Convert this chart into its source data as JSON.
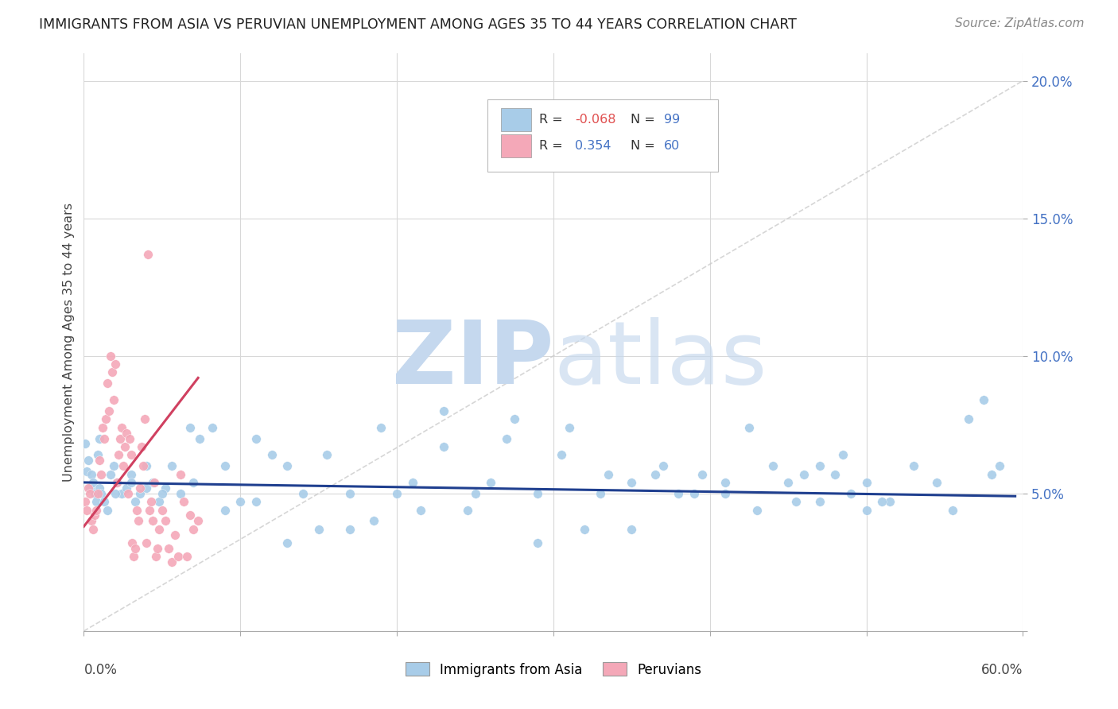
{
  "title": "IMMIGRANTS FROM ASIA VS PERUVIAN UNEMPLOYMENT AMONG AGES 35 TO 44 YEARS CORRELATION CHART",
  "source": "Source: ZipAtlas.com",
  "ylabel": "Unemployment Among Ages 35 to 44 years",
  "xlim": [
    0.0,
    0.6
  ],
  "ylim": [
    0.0,
    0.21
  ],
  "legend_r_blue": "-0.068",
  "legend_n_blue": "99",
  "legend_r_pink": "0.354",
  "legend_n_pink": "60",
  "blue_color": "#a8cce8",
  "pink_color": "#f4a8b8",
  "blue_line_color": "#1f3f8f",
  "pink_line_color": "#d04060",
  "diag_color": "#cccccc",
  "grid_color": "#d8d8d8",
  "background_color": "#ffffff",
  "ytick_color": "#4472c4",
  "text_color": "#444444",
  "source_color": "#888888",
  "legend_blue_x": [
    0.001,
    0.002,
    0.003,
    0.004,
    0.005,
    0.006,
    0.007,
    0.008,
    0.009,
    0.01,
    0.011,
    0.013,
    0.015,
    0.017,
    0.019,
    0.021,
    0.024,
    0.027,
    0.03,
    0.033,
    0.036,
    0.04,
    0.044,
    0.048,
    0.052,
    0.056,
    0.062,
    0.068,
    0.074,
    0.082,
    0.09,
    0.1,
    0.11,
    0.12,
    0.13,
    0.14,
    0.155,
    0.17,
    0.185,
    0.2,
    0.215,
    0.23,
    0.245,
    0.26,
    0.275,
    0.29,
    0.305,
    0.32,
    0.335,
    0.35,
    0.365,
    0.38,
    0.395,
    0.41,
    0.425,
    0.44,
    0.455,
    0.47,
    0.485,
    0.5,
    0.515,
    0.53,
    0.545,
    0.555,
    0.565,
    0.575,
    0.58,
    0.585,
    0.01,
    0.02,
    0.03,
    0.04,
    0.05,
    0.07,
    0.09,
    0.11,
    0.13,
    0.15,
    0.17,
    0.19,
    0.21,
    0.23,
    0.25,
    0.27,
    0.29,
    0.31,
    0.33,
    0.35,
    0.37,
    0.39,
    0.41,
    0.43,
    0.45,
    0.46,
    0.47,
    0.48,
    0.49,
    0.5,
    0.51
  ],
  "legend_blue_y": [
    0.068,
    0.058,
    0.062,
    0.052,
    0.057,
    0.054,
    0.05,
    0.047,
    0.064,
    0.052,
    0.05,
    0.047,
    0.044,
    0.057,
    0.06,
    0.054,
    0.05,
    0.052,
    0.057,
    0.047,
    0.05,
    0.052,
    0.054,
    0.047,
    0.052,
    0.06,
    0.05,
    0.074,
    0.07,
    0.074,
    0.06,
    0.047,
    0.07,
    0.064,
    0.032,
    0.05,
    0.064,
    0.05,
    0.04,
    0.05,
    0.044,
    0.08,
    0.044,
    0.054,
    0.077,
    0.05,
    0.064,
    0.037,
    0.057,
    0.037,
    0.057,
    0.05,
    0.057,
    0.05,
    0.074,
    0.06,
    0.047,
    0.06,
    0.064,
    0.054,
    0.047,
    0.06,
    0.054,
    0.044,
    0.077,
    0.084,
    0.057,
    0.06,
    0.07,
    0.05,
    0.054,
    0.06,
    0.05,
    0.054,
    0.044,
    0.047,
    0.06,
    0.037,
    0.037,
    0.074,
    0.054,
    0.067,
    0.05,
    0.07,
    0.032,
    0.074,
    0.05,
    0.054,
    0.06,
    0.05,
    0.054,
    0.044,
    0.054,
    0.057,
    0.047,
    0.057,
    0.05,
    0.044,
    0.047
  ],
  "legend_pink_x": [
    0.001,
    0.002,
    0.003,
    0.004,
    0.005,
    0.006,
    0.007,
    0.008,
    0.009,
    0.01,
    0.011,
    0.012,
    0.013,
    0.014,
    0.015,
    0.016,
    0.017,
    0.018,
    0.019,
    0.02,
    0.021,
    0.022,
    0.023,
    0.024,
    0.025,
    0.026,
    0.027,
    0.028,
    0.029,
    0.03,
    0.031,
    0.032,
    0.033,
    0.034,
    0.035,
    0.036,
    0.037,
    0.038,
    0.039,
    0.04,
    0.041,
    0.042,
    0.043,
    0.044,
    0.045,
    0.046,
    0.047,
    0.048,
    0.05,
    0.052,
    0.054,
    0.056,
    0.058,
    0.06,
    0.062,
    0.064,
    0.066,
    0.068,
    0.07,
    0.073
  ],
  "legend_pink_y": [
    0.047,
    0.044,
    0.052,
    0.05,
    0.04,
    0.037,
    0.042,
    0.044,
    0.05,
    0.062,
    0.057,
    0.074,
    0.07,
    0.077,
    0.09,
    0.08,
    0.1,
    0.094,
    0.084,
    0.097,
    0.054,
    0.064,
    0.07,
    0.074,
    0.06,
    0.067,
    0.072,
    0.05,
    0.07,
    0.064,
    0.032,
    0.027,
    0.03,
    0.044,
    0.04,
    0.052,
    0.067,
    0.06,
    0.077,
    0.032,
    0.137,
    0.044,
    0.047,
    0.04,
    0.054,
    0.027,
    0.03,
    0.037,
    0.044,
    0.04,
    0.03,
    0.025,
    0.035,
    0.027,
    0.057,
    0.047,
    0.027,
    0.042,
    0.037,
    0.04
  ],
  "pink_line_x": [
    0.0,
    0.073
  ],
  "pink_line_y_start": 0.038,
  "pink_line_y_end": 0.092,
  "blue_line_x": [
    0.0,
    0.595
  ],
  "blue_line_y_start": 0.054,
  "blue_line_y_end": 0.049
}
